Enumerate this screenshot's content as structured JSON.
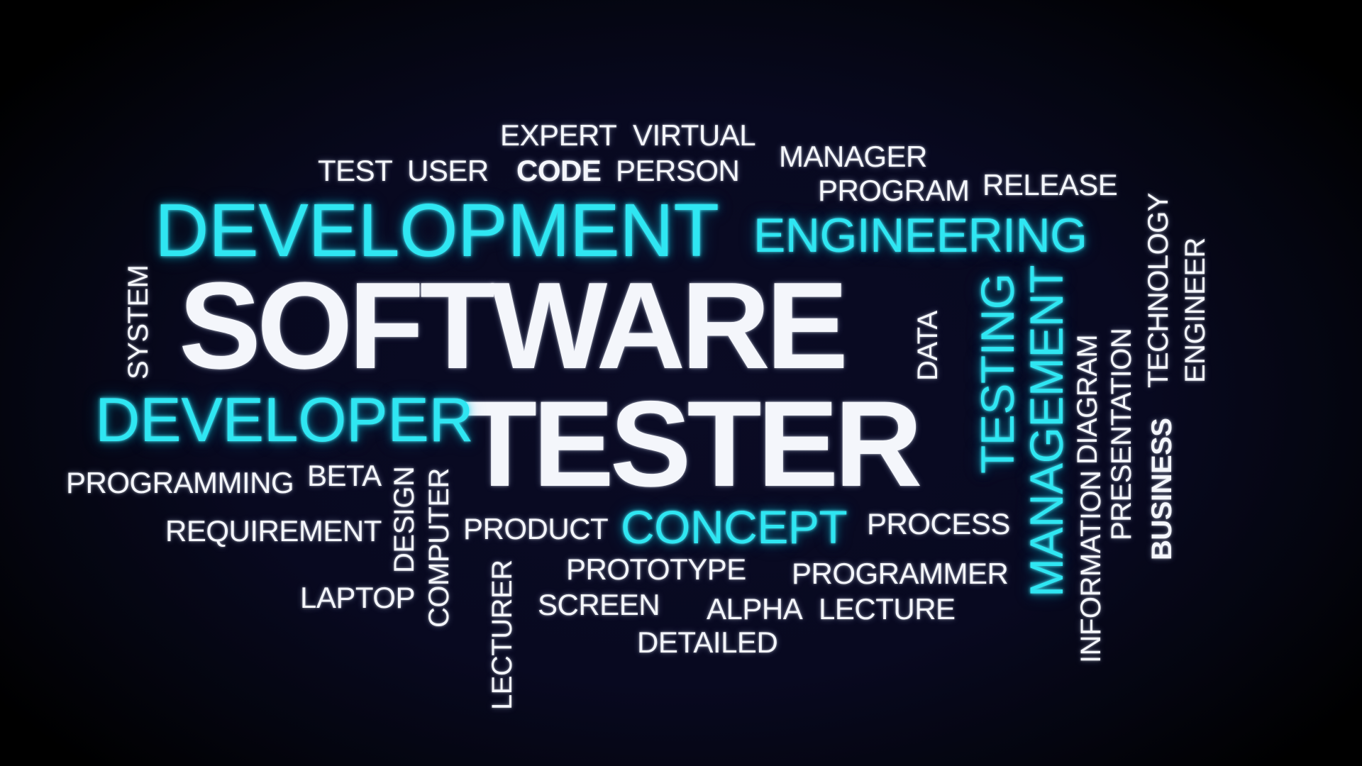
{
  "colors": {
    "background": "#080920",
    "primary_word": "#f4f6fb",
    "accent_word": "#2fe6f2"
  },
  "words": {
    "software": "SOFTWARE",
    "tester": "TESTER",
    "development": "DEVELOPMENT",
    "engineering": "ENGINEERING",
    "developer": "DEVELOPER",
    "concept": "CONCEPT",
    "testing": "TESTING",
    "management": "MANAGEMENT",
    "expert": "EXPERT",
    "virtual": "VIRTUAL",
    "test": "TEST",
    "user": "USER",
    "code": "CODE",
    "person": "PERSON",
    "manager": "MANAGER",
    "program": "PROGRAM",
    "release": "RELEASE",
    "system": "SYSTEM",
    "data": "DATA",
    "diagram": "DIAGRAM",
    "presentation": "PRESENTATION",
    "technology": "TECHNOLOGY",
    "engineer": "ENGINEER",
    "business": "BUSINESS",
    "information": "INFORMATION",
    "programming": "PROGRAMMING",
    "beta": "BETA",
    "design": "DESIGN",
    "computer": "COMPUTER",
    "requirement": "REQUIREMENT",
    "product": "PRODUCT",
    "process": "PROCESS",
    "prototype": "PROTOTYPE",
    "programmer": "PROGRAMMER",
    "laptop": "LAPTOP",
    "lecturer": "LECTURER",
    "screen": "SCREEN",
    "alpha": "ALPHA",
    "lecture": "LECTURE",
    "detailed": "DETAILED"
  }
}
